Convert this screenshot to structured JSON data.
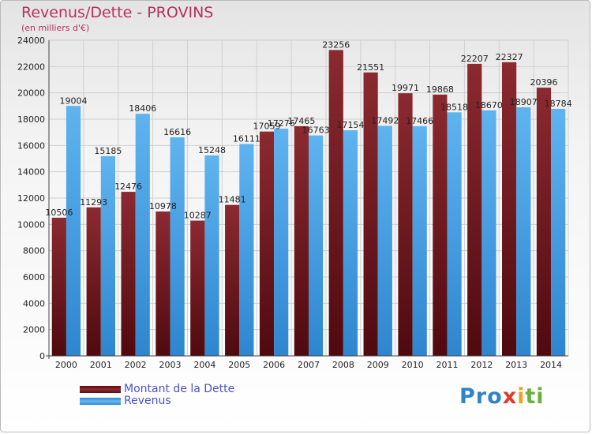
{
  "title": "Revenus/Dette - PROVINS",
  "subtitle": "(en milliers d'€)",
  "colors": {
    "dette": "#7a1f24",
    "revenus": "#4aa3e3",
    "title": "#b7305f",
    "legend_text": "#4a52c8"
  },
  "legend": {
    "items": [
      {
        "label": "Montant de la Dette",
        "color": "#7a1f24"
      },
      {
        "label": "Revenus",
        "color": "#4aa3e3"
      }
    ]
  },
  "logo": {
    "letters": [
      {
        "ch": "P",
        "color": "#2f84c8"
      },
      {
        "ch": "r",
        "color": "#2f84c8"
      },
      {
        "ch": "o",
        "color": "#2f84c8"
      },
      {
        "ch": "x",
        "color": "#e23a2c"
      },
      {
        "ch": "i",
        "color": "#f0a020"
      },
      {
        "ch": "t",
        "color": "#6ab03a"
      },
      {
        "ch": "i",
        "color": "#6ab03a"
      }
    ]
  },
  "chart_data": {
    "type": "bar",
    "title": "Revenus/Dette - PROVINS",
    "subtitle": "(en milliers d'€)",
    "categories": [
      "2000",
      "2001",
      "2002",
      "2003",
      "2004",
      "2005",
      "2006",
      "2007",
      "2008",
      "2009",
      "2010",
      "2011",
      "2012",
      "2013",
      "2014"
    ],
    "series": [
      {
        "name": "Montant de la Dette",
        "values": [
          10506,
          11293,
          12476,
          10978,
          10287,
          11481,
          17059,
          17465,
          23256,
          21551,
          19971,
          19868,
          22207,
          22327,
          20396
        ]
      },
      {
        "name": "Revenus",
        "values": [
          19004,
          15185,
          18406,
          16616,
          15248,
          16111,
          17276,
          16763,
          17154,
          17492,
          17466,
          18518,
          18670,
          18907,
          18784
        ]
      }
    ],
    "data_labels": [
      [
        "10506",
        "11293",
        "12476",
        "10978",
        "10287",
        "11481",
        "17059",
        "17465",
        "23256",
        "21551",
        "19971",
        "19868",
        "22207",
        "22327",
        "20396"
      ],
      [
        "19004",
        "15185",
        "18406",
        "16616",
        "15248",
        "16111",
        "17276",
        "16763",
        "17154",
        "17492",
        "17466",
        "18518",
        "18670",
        "18907",
        "18784"
      ]
    ],
    "ylim": [
      0,
      24000
    ],
    "yticks": [
      0,
      2000,
      4000,
      6000,
      8000,
      10000,
      12000,
      14000,
      16000,
      18000,
      20000,
      22000,
      24000
    ],
    "grid": true,
    "legend_position": "bottom-left"
  }
}
